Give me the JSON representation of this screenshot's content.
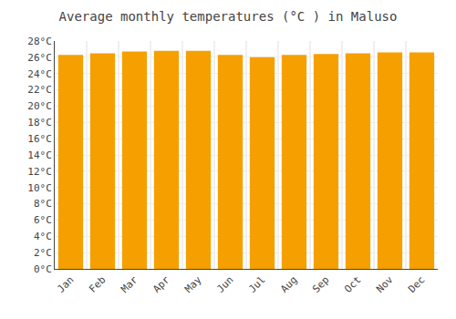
{
  "chart_data": {
    "type": "bar",
    "title": "Average monthly temperatures (°C ) in Maluso",
    "categories": [
      "Jan",
      "Feb",
      "Mar",
      "Apr",
      "May",
      "Jun",
      "Jul",
      "Aug",
      "Sep",
      "Oct",
      "Nov",
      "Dec"
    ],
    "values": [
      26.3,
      26.5,
      26.7,
      26.8,
      26.8,
      26.3,
      26.0,
      26.3,
      26.4,
      26.5,
      26.6,
      26.6
    ],
    "color": "#F5A000",
    "ylim": [
      0,
      28
    ],
    "yticks": [
      {
        "value": 0,
        "label": "0°C"
      },
      {
        "value": 2,
        "label": "2°C"
      },
      {
        "value": 4,
        "label": "4°C"
      },
      {
        "value": 6,
        "label": "6°C"
      },
      {
        "value": 8,
        "label": "8°C"
      },
      {
        "value": 10,
        "label": "10°C"
      },
      {
        "value": 12,
        "label": "12°C"
      },
      {
        "value": 14,
        "label": "14°C"
      },
      {
        "value": 16,
        "label": "16°C"
      },
      {
        "value": 18,
        "label": "18°C"
      },
      {
        "value": 20,
        "label": "20°C"
      },
      {
        "value": 22,
        "label": "22°C"
      },
      {
        "value": 24,
        "label": "24°C"
      },
      {
        "value": 26,
        "label": "26°C"
      },
      {
        "value": 28,
        "label": "28°C"
      }
    ],
    "grid": true
  }
}
